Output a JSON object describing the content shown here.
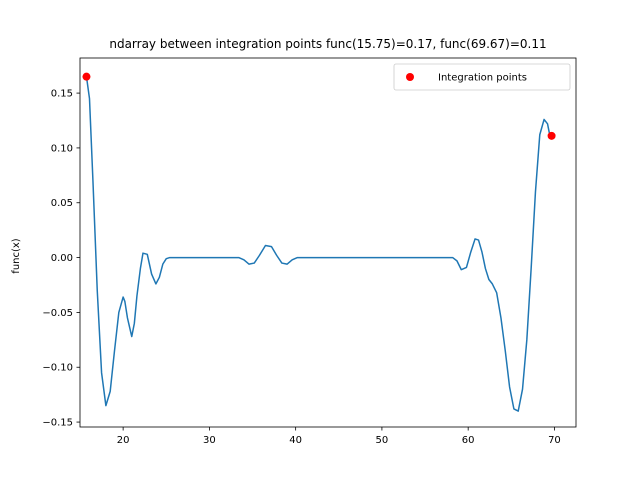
{
  "chart_data": {
    "type": "line",
    "title": "ndarray between integration points func(15.75)=0.17, func(69.67)=0.11",
    "xlabel": "",
    "ylabel": "func(x)",
    "xlim": [
      15.0,
      72.5
    ],
    "ylim": [
      -0.1545,
      0.182
    ],
    "xticks": [
      20,
      30,
      40,
      50,
      60,
      70
    ],
    "yticks": [
      -0.15,
      -0.1,
      -0.05,
      0.0,
      0.05,
      0.1,
      0.15
    ],
    "ytick_labels": [
      "−0.15",
      "−0.10",
      "−0.05",
      "0.00",
      "0.05",
      "0.10",
      "0.15"
    ],
    "grid": false,
    "legend_position": "top-right",
    "colors": {
      "line": "#1f77b4",
      "points": "#ff0000"
    },
    "series": [
      {
        "type": "line",
        "x": [
          15.75,
          16.1,
          16.5,
          17.0,
          17.5,
          18.0,
          18.5,
          19.0,
          19.5,
          20.0,
          20.2,
          20.5,
          21.0,
          21.3,
          21.6,
          22.0,
          22.3,
          22.8,
          23.3,
          23.8,
          24.2,
          24.6,
          25.0,
          25.4,
          26.0,
          27.0,
          28.0,
          29.0,
          30.0,
          31.0,
          32.0,
          32.8,
          33.4,
          34.0,
          34.6,
          35.2,
          35.8,
          36.5,
          37.2,
          37.8,
          38.4,
          39.0,
          39.6,
          40.2,
          40.8,
          42.0,
          44.0,
          46.0,
          48.0,
          50.0,
          52.0,
          54.0,
          56.0,
          57.0,
          57.6,
          58.2,
          58.7,
          59.2,
          59.8,
          60.3,
          60.8,
          61.2,
          61.6,
          62.0,
          62.4,
          62.8,
          63.3,
          63.8,
          64.3,
          64.8,
          65.3,
          65.8,
          66.3,
          66.8,
          67.3,
          67.8,
          68.3,
          68.8,
          69.2,
          69.4,
          69.67
        ],
        "y": [
          0.165,
          0.145,
          0.07,
          -0.03,
          -0.105,
          -0.135,
          -0.122,
          -0.085,
          -0.05,
          -0.036,
          -0.04,
          -0.055,
          -0.072,
          -0.06,
          -0.035,
          -0.01,
          0.004,
          0.003,
          -0.015,
          -0.024,
          -0.018,
          -0.006,
          -0.001,
          0.0,
          0.0,
          0.0,
          0.0,
          0.0,
          0.0,
          0.0,
          0.0,
          0.0,
          0.0,
          -0.002,
          -0.006,
          -0.005,
          0.002,
          0.011,
          0.01,
          0.002,
          -0.005,
          -0.006,
          -0.002,
          0.0,
          0.0,
          0.0,
          0.0,
          0.0,
          0.0,
          0.0,
          0.0,
          0.0,
          0.0,
          0.0,
          0.0,
          0.0,
          -0.003,
          -0.011,
          -0.009,
          0.005,
          0.017,
          0.016,
          0.005,
          -0.01,
          -0.02,
          -0.024,
          -0.032,
          -0.055,
          -0.085,
          -0.118,
          -0.138,
          -0.14,
          -0.12,
          -0.075,
          -0.01,
          0.06,
          0.112,
          0.126,
          0.122,
          0.114,
          0.111
        ]
      },
      {
        "type": "scatter",
        "name": "Integration points",
        "x": [
          15.75,
          69.67
        ],
        "y": [
          0.165,
          0.111
        ]
      }
    ]
  }
}
